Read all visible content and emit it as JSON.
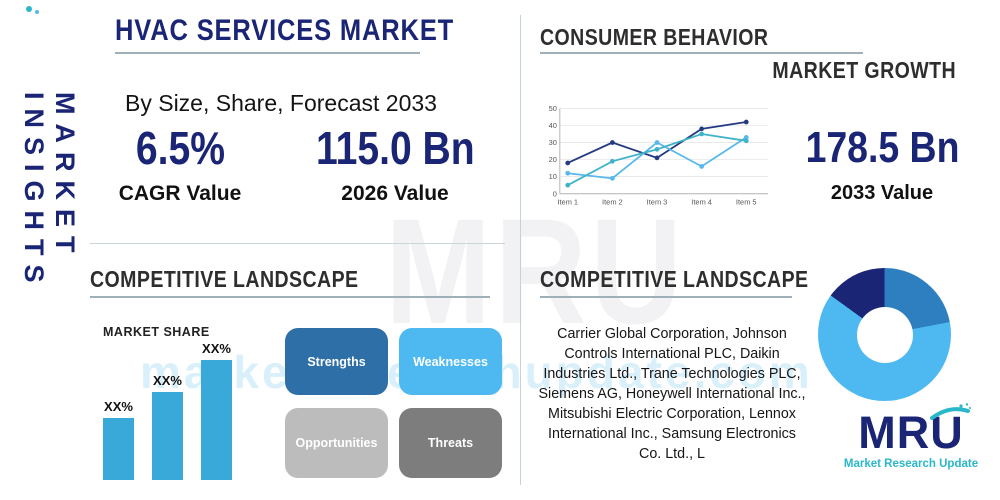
{
  "colors": {
    "navy": "#1a2575",
    "heading": "#2e2e2e",
    "teal": "#2ab7ca",
    "bar": "#38a9d9",
    "divider": "#ccd6da"
  },
  "sidebar": {
    "title": "MARKET INSIGHTS"
  },
  "header": {
    "title": "HVAC SERVICES MARKET",
    "subtitle": "By Size, Share, Forecast 2033",
    "stats": [
      {
        "value": "6.5%",
        "label": "CAGR Value"
      },
      {
        "value": "115.0 Bn",
        "label": "2026 Value"
      }
    ]
  },
  "consumer": {
    "heading": "CONSUMER BEHAVIOR",
    "subheading": "MARKET GROWTH",
    "stat": {
      "value": "178.5 Bn",
      "label": "2033 Value"
    }
  },
  "competitive_left": {
    "heading": "COMPETITIVE LANDSCAPE",
    "market_share_label": "MARKET SHARE",
    "swot": [
      {
        "label": "Strengths",
        "color": "#2f6fa7"
      },
      {
        "label": "Weaknesses",
        "color": "#4db9f0"
      },
      {
        "label": "Opportunities",
        "color": "#bcbcbc"
      },
      {
        "label": "Threats",
        "color": "#7d7d7d"
      }
    ]
  },
  "competitive_right": {
    "heading": "COMPETITIVE LANDSCAPE",
    "companies": "Carrier Global Corporation, Johnson Controls International PLC, Daikin Industries Ltd., Trane Technologies PLC, Siemens AG, Honeywell International Inc., Mitsubishi Electric Corporation, Lennox International Inc., Samsung Electronics Co. Ltd., L"
  },
  "logo": {
    "letters": [
      "M",
      "R",
      "U"
    ],
    "tagline": "Market Research Update"
  },
  "watermark": {
    "text": "MRU",
    "url": "marketresearchupdate.com"
  },
  "chart_data": [
    {
      "name": "market-growth-line",
      "type": "line",
      "x": [
        "Item 1",
        "Item 2",
        "Item 3",
        "Item 4",
        "Item 5"
      ],
      "series": [
        {
          "name": "series-navy",
          "color": "#243b82",
          "values": [
            18,
            30,
            21,
            38,
            42
          ]
        },
        {
          "name": "series-sky",
          "color": "#57b8ec",
          "values": [
            12,
            9,
            30,
            16,
            33
          ]
        },
        {
          "name": "series-teal",
          "color": "#3fb4c8",
          "values": [
            5,
            19,
            26,
            35,
            31
          ]
        }
      ],
      "ylim": [
        0,
        50
      ],
      "yticks": [
        0,
        10,
        20,
        30,
        40,
        50
      ],
      "grid": true,
      "legend": "none"
    },
    {
      "name": "market-share-bars",
      "type": "bar",
      "title": "MARKET SHARE",
      "labels": [
        "XX%",
        "XX%",
        "XX%"
      ],
      "values": [
        31,
        44,
        60
      ],
      "color": "#38a9d9"
    },
    {
      "name": "competitor-share-donut",
      "type": "pie",
      "donut": true,
      "segments": [
        {
          "name": "segment-mid-blue",
          "value": 22,
          "color": "#2e7fc0"
        },
        {
          "name": "segment-light-blue",
          "value": 63,
          "color": "#4db9f0"
        },
        {
          "name": "segment-navy",
          "value": 15,
          "color": "#1a2575"
        }
      ]
    }
  ]
}
